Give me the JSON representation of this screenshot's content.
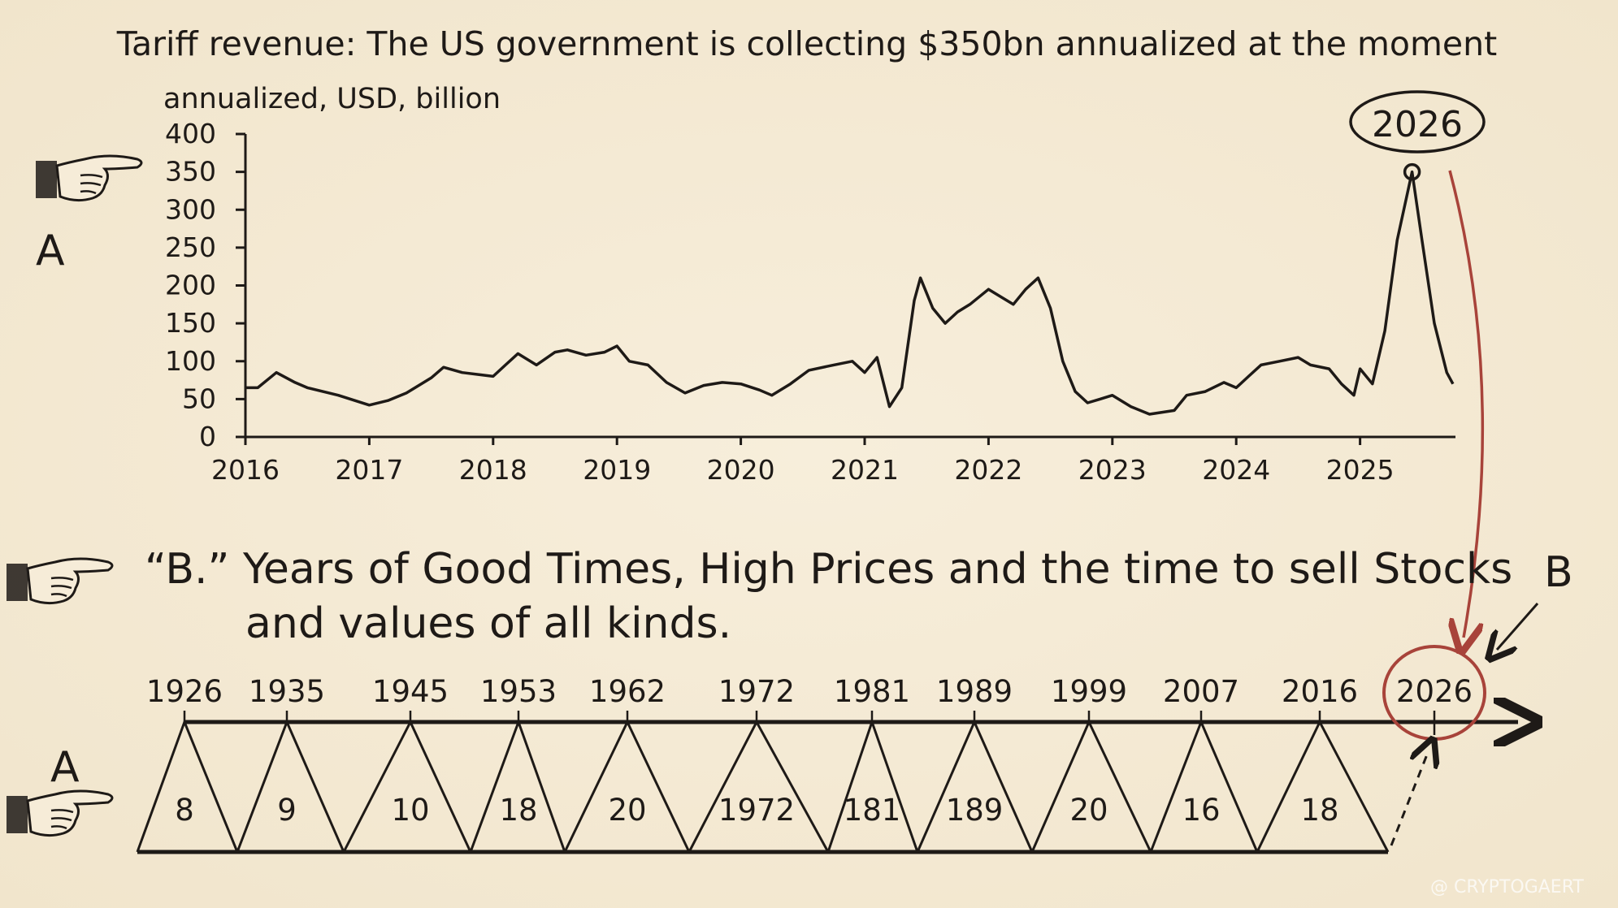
{
  "chart_data": {
    "type": "line",
    "title": "Tariff revenue: The US government is collecting $350bn annualized at the moment",
    "ylabel": "annualized, USD, billion",
    "xlabel": "",
    "ylim": [
      0,
      400
    ],
    "yticks": [
      "0",
      "50",
      "100",
      "150",
      "200",
      "250",
      "300",
      "350",
      "400"
    ],
    "xticks": [
      "2016",
      "2017",
      "2018",
      "2019",
      "2020",
      "2021",
      "2022",
      "2023",
      "2024",
      "2025"
    ],
    "grid": false,
    "line_color": "#1e1a17",
    "x": [
      2016.0,
      2016.1,
      2016.25,
      2016.4,
      2016.5,
      2016.75,
      2017.0,
      2017.15,
      2017.3,
      2017.5,
      2017.6,
      2017.75,
      2017.9,
      2018.0,
      2018.1,
      2018.2,
      2018.35,
      2018.5,
      2018.6,
      2018.75,
      2018.9,
      2019.0,
      2019.1,
      2019.25,
      2019.4,
      2019.55,
      2019.7,
      2019.85,
      2020.0,
      2020.15,
      2020.25,
      2020.4,
      2020.55,
      2020.75,
      2020.9,
      2021.0,
      2021.1,
      2021.2,
      2021.3,
      2021.4,
      2021.45,
      2021.55,
      2021.65,
      2021.75,
      2021.85,
      2022.0,
      2022.1,
      2022.2,
      2022.3,
      2022.4,
      2022.5,
      2022.6,
      2022.7,
      2022.8,
      2022.9,
      2023.0,
      2023.15,
      2023.3,
      2023.5,
      2023.6,
      2023.75,
      2023.9,
      2024.0,
      2024.1,
      2024.2,
      2024.35,
      2024.5,
      2024.6,
      2024.75,
      2024.85,
      2024.95,
      2025.0,
      2025.1,
      2025.2,
      2025.3,
      2025.42,
      2025.5,
      2025.6,
      2025.7,
      2025.75
    ],
    "y": [
      65,
      65,
      85,
      72,
      65,
      55,
      42,
      48,
      58,
      78,
      92,
      85,
      82,
      80,
      95,
      110,
      95,
      112,
      115,
      108,
      112,
      120,
      100,
      95,
      72,
      58,
      68,
      72,
      70,
      62,
      55,
      70,
      88,
      95,
      100,
      85,
      105,
      40,
      65,
      180,
      210,
      170,
      150,
      165,
      175,
      195,
      185,
      175,
      195,
      210,
      170,
      100,
      60,
      45,
      50,
      55,
      40,
      30,
      35,
      55,
      60,
      72,
      65,
      80,
      95,
      100,
      105,
      95,
      90,
      70,
      55,
      90,
      70,
      140,
      260,
      350,
      260,
      150,
      85,
      70
    ]
  },
  "annotations": {
    "highlight_label": "2026",
    "highlight_color": "#a8433a",
    "label_a": "A",
    "label_b": "B",
    "quote_line1": "“B.” Years of Good Times, High Prices and the time to sell Stocks",
    "quote_line2": "and values of all kinds."
  },
  "timeline": {
    "years": [
      "1926",
      "1935",
      "1945",
      "1953",
      "1962",
      "1972",
      "1981",
      "1989",
      "1999",
      "2007",
      "2016",
      "2026"
    ],
    "intervals": [
      "8",
      "9",
      "10",
      "18",
      "20",
      "1972",
      "181",
      "189",
      "20",
      "16",
      "18"
    ],
    "highlight_year": "2026"
  },
  "icons": [
    "pointing-hand-icon",
    "pointing-hand-icon",
    "pointing-hand-icon"
  ],
  "watermark": "@ CRYPTOGAERT"
}
